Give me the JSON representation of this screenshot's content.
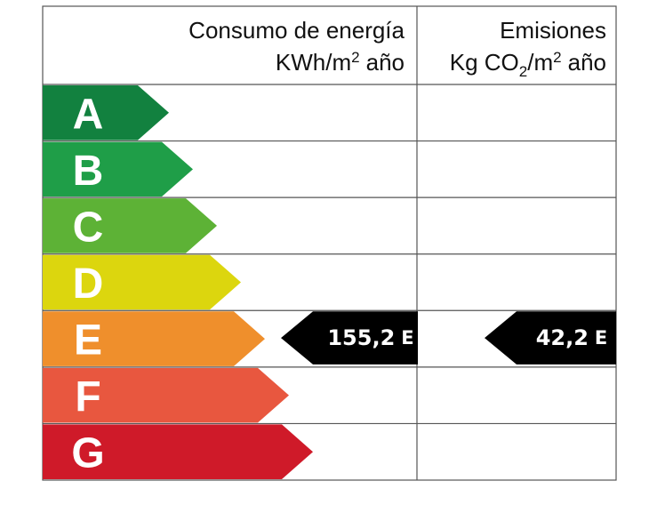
{
  "header": {
    "energy_title": "Consumo de energía",
    "energy_unit": [
      "KWh/m",
      "2",
      "año"
    ],
    "emissions_title": "Emisiones",
    "emissions_unit": [
      "Kg CO",
      "2",
      "/m",
      "2",
      "año"
    ]
  },
  "rows": [
    {
      "letter": "A",
      "color": "#12813f"
    },
    {
      "letter": "B",
      "color": "#1f9e48"
    },
    {
      "letter": "C",
      "color": "#5db236"
    },
    {
      "letter": "D",
      "color": "#dcd60e"
    },
    {
      "letter": "E",
      "color": "#ef8f2c"
    },
    {
      "letter": "F",
      "color": "#e8573f"
    },
    {
      "letter": "G",
      "color": "#cf1a29"
    }
  ],
  "energy_indicator": {
    "value": "155,2",
    "rating": "E"
  },
  "emissions_indicator": {
    "value": "42,2",
    "rating": "E"
  }
}
